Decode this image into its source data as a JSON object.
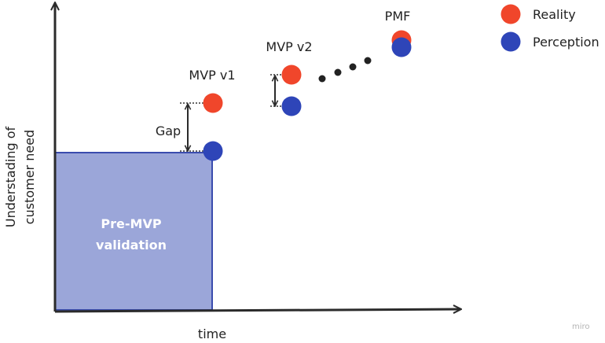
{
  "colors": {
    "reality": "#f0462b",
    "perception": "#2e45b8",
    "box_fill": "#9ba6d9",
    "box_stroke": "#3a4cae",
    "axis": "#2b2b2b",
    "dots": "#222222"
  },
  "axes": {
    "x_label": "time",
    "y_label_line1": "Understading of",
    "y_label_line2": "customer need"
  },
  "box": {
    "line1": "Pre-MVP",
    "line2": "validation"
  },
  "milestones": [
    {
      "label": "MVP v1"
    },
    {
      "label": "MVP v2"
    },
    {
      "label": "PMF"
    }
  ],
  "gap_label": "Gap",
  "legend": {
    "reality": "Reality",
    "perception": "Perception"
  },
  "watermark": "miro"
}
